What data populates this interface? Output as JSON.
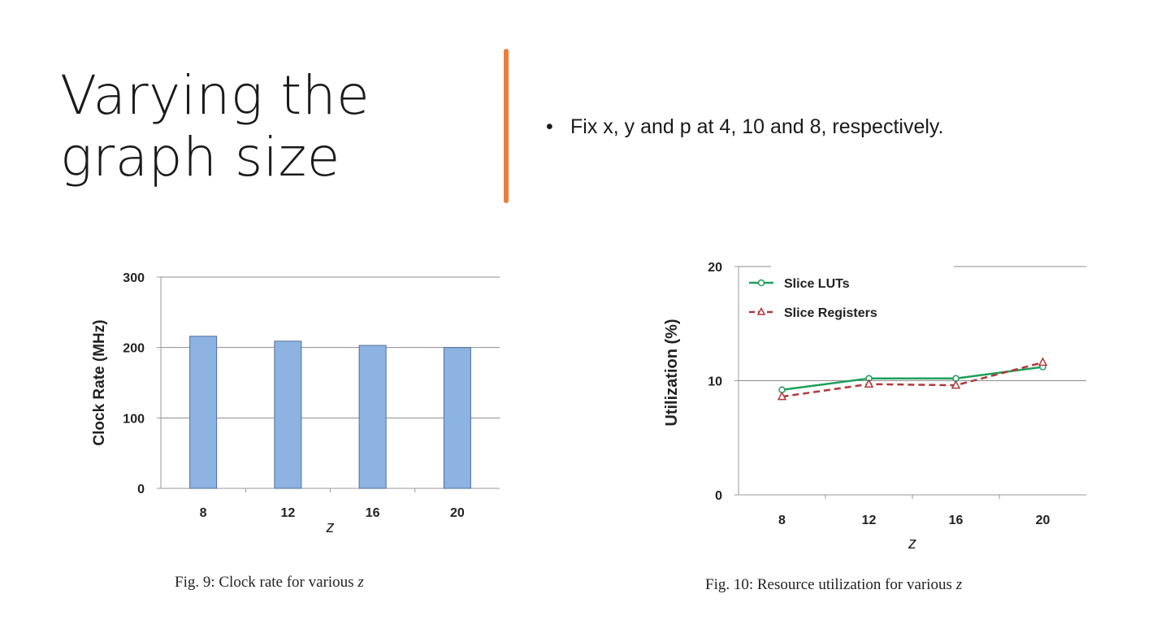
{
  "slide": {
    "title_line1": "Varying the",
    "title_line2": "graph size",
    "bullet": "Fix x, y and p at 4, 10 and 8, respectively.",
    "accent_color": "#E97F3A"
  },
  "figures": {
    "fig9_caption": "Fig. 9: Clock rate for various ",
    "fig9_caption_var": "z",
    "fig10_caption": "Fig. 10: Resource utilization for various ",
    "fig10_caption_var": "z"
  },
  "chart_data": [
    {
      "type": "bar",
      "title": "",
      "xlabel": "z",
      "ylabel": "Clock Rate (MHz)",
      "categories": [
        "8",
        "12",
        "16",
        "20"
      ],
      "values": [
        216,
        209,
        203,
        200
      ],
      "ylim": [
        0,
        300
      ],
      "yticks": [
        0,
        100,
        200,
        300
      ],
      "grid": true,
      "bar_color": "#8DB3E2",
      "bar_edge_color": "#4F6E9C"
    },
    {
      "type": "line",
      "title": "",
      "xlabel": "z",
      "ylabel": "Utilization (%)",
      "categories": [
        "8",
        "12",
        "16",
        "20"
      ],
      "ylim": [
        0,
        20
      ],
      "yticks": [
        0,
        10,
        20
      ],
      "grid": true,
      "legend_position": "top-left",
      "series": [
        {
          "name": "Slice LUTs",
          "values": [
            9.2,
            10.2,
            10.2,
            11.2
          ],
          "color": "#1F9E5A",
          "style": "solid",
          "marker": "circle"
        },
        {
          "name": "Slice Registers",
          "values": [
            8.6,
            9.7,
            9.6,
            11.6
          ],
          "color": "#B0383B",
          "style": "dashed",
          "marker": "triangle"
        }
      ]
    }
  ]
}
